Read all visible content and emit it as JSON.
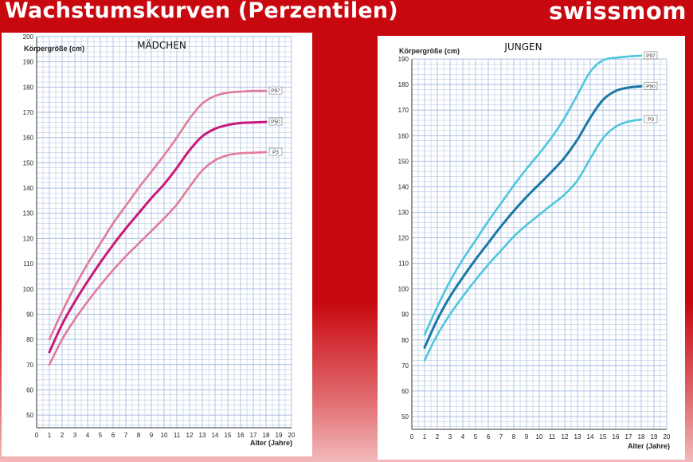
{
  "header": {
    "title": "Wachstumskurven (Perzentilen)",
    "logo_text": "swissmom"
  },
  "colors": {
    "background": "#c8080f",
    "grid": "#a9bfe0",
    "girls_p97": "#e07b9c",
    "girls_p50": "#c8197a",
    "girls_p3": "#e07b9c",
    "boys_p97": "#4ec6dd",
    "boys_p50": "#1a78a6",
    "boys_p3": "#4ec6dd"
  },
  "chart_data": [
    {
      "type": "line",
      "title": "MÄDCHEN",
      "ylabel": "Körpergröße (cm)",
      "xlabel": "Alter (Jahre)",
      "xlim": [
        0,
        20
      ],
      "ylim": [
        45,
        200
      ],
      "x_ticks": [
        0,
        1,
        2,
        3,
        4,
        5,
        6,
        7,
        8,
        9,
        10,
        11,
        12,
        13,
        14,
        15,
        16,
        17,
        18,
        19,
        20
      ],
      "y_ticks": [
        50,
        60,
        70,
        80,
        90,
        100,
        110,
        120,
        130,
        140,
        150,
        160,
        170,
        180,
        190,
        200
      ],
      "grid": true,
      "series": [
        {
          "name": "P97",
          "x": [
            1,
            2,
            3,
            4,
            5,
            6,
            7,
            8,
            9,
            10,
            11,
            12,
            13,
            14,
            15,
            16,
            17,
            18
          ],
          "values": [
            80,
            91,
            101,
            110,
            118,
            126,
            133,
            140,
            146.5,
            153,
            160,
            167.5,
            173.5,
            176.5,
            177.8,
            178.2,
            178.5,
            178.5
          ]
        },
        {
          "name": "P50",
          "x": [
            1,
            2,
            3,
            4,
            5,
            6,
            7,
            8,
            9,
            10,
            11,
            12,
            13,
            14,
            15,
            16,
            17,
            18
          ],
          "values": [
            75,
            86,
            95,
            103,
            110.5,
            117.5,
            124,
            130,
            136,
            141.5,
            148,
            155,
            160.5,
            163.5,
            165,
            165.8,
            166,
            166.2
          ]
        },
        {
          "name": "P3",
          "x": [
            1,
            2,
            3,
            4,
            5,
            6,
            7,
            8,
            9,
            10,
            11,
            12,
            13,
            14,
            15,
            16,
            17,
            18
          ],
          "values": [
            70,
            80,
            88,
            95,
            101.5,
            107.5,
            113,
            118,
            123,
            128,
            133.5,
            140.5,
            147,
            151,
            153,
            153.8,
            154,
            154.2
          ]
        }
      ]
    },
    {
      "type": "line",
      "title": "JUNGEN",
      "ylabel": "Körpergröße (cm)",
      "xlabel": "Alter (Jahre)",
      "xlim": [
        0,
        20
      ],
      "ylim": [
        45,
        200
      ],
      "x_ticks": [
        0,
        1,
        2,
        3,
        4,
        5,
        6,
        7,
        8,
        9,
        10,
        11,
        12,
        13,
        14,
        15,
        16,
        17,
        18,
        19,
        20
      ],
      "y_ticks": [
        50,
        60,
        70,
        80,
        90,
        100,
        110,
        120,
        130,
        140,
        150,
        160,
        170,
        180,
        190
      ],
      "grid": true,
      "series": [
        {
          "name": "P97",
          "x": [
            1,
            2,
            3,
            4,
            5,
            6,
            7,
            8,
            9,
            10,
            11,
            12,
            13,
            14,
            15,
            16,
            17,
            18
          ],
          "values": [
            82,
            93,
            103,
            111.5,
            119,
            126.5,
            133.5,
            140.5,
            147,
            153,
            159.5,
            167,
            176,
            185,
            189.5,
            190.5,
            191,
            191.3
          ]
        },
        {
          "name": "P50",
          "x": [
            1,
            2,
            3,
            4,
            5,
            6,
            7,
            8,
            9,
            10,
            11,
            12,
            13,
            14,
            15,
            16,
            17,
            18
          ],
          "values": [
            77,
            88,
            97,
            104.5,
            111.5,
            118,
            124.5,
            130.5,
            136,
            141,
            146,
            151.5,
            158.5,
            167,
            174,
            177.5,
            178.8,
            179.3
          ]
        },
        {
          "name": "P3",
          "x": [
            1,
            2,
            3,
            4,
            5,
            6,
            7,
            8,
            9,
            10,
            11,
            12,
            13,
            14,
            15,
            16,
            17,
            18
          ],
          "values": [
            72,
            82,
            90,
            97,
            103.5,
            109.5,
            115,
            120.5,
            125,
            129,
            133,
            137,
            142.5,
            151,
            159,
            163.5,
            165.5,
            166.3
          ]
        }
      ]
    }
  ]
}
